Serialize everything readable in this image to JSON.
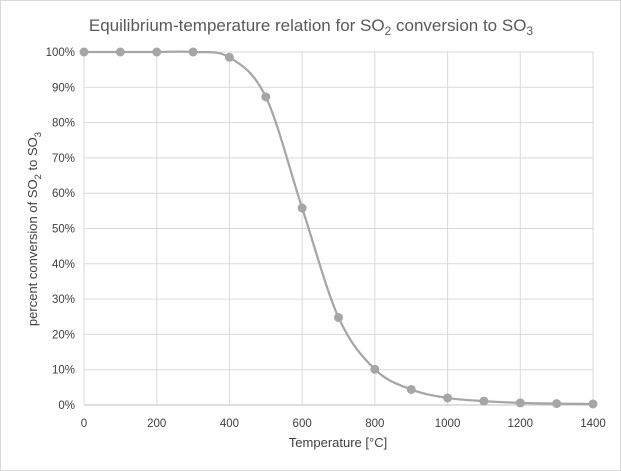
{
  "chart_data": {
    "type": "scatter",
    "title": {
      "main": "Equilibrium-temperature relation for SO",
      "sub1": "2",
      "mid": " conversion to SO",
      "sub2": "3"
    },
    "xlabel": "Temperature [°C]",
    "ylabel": {
      "main": "percent conversion of SO",
      "sub1": "2",
      "mid": " to SO",
      "sub2": "3"
    },
    "xlim": [
      0,
      1400
    ],
    "ylim": [
      0,
      100
    ],
    "x_ticks": [
      0,
      200,
      400,
      600,
      800,
      1000,
      1200,
      1400
    ],
    "y_ticks": [
      0,
      10,
      20,
      30,
      40,
      50,
      60,
      70,
      80,
      90,
      100
    ],
    "y_tick_suffix": "%",
    "grid": true,
    "smooth_line": true,
    "series": [
      {
        "x": [
          0,
          100,
          200,
          300,
          400,
          500,
          600,
          700,
          800,
          900,
          1000,
          1100,
          1200,
          1300,
          1400
        ],
        "y": [
          100,
          100,
          100,
          100,
          98.5,
          87.3,
          55.8,
          24.8,
          10.1,
          4.4,
          2.0,
          1.1,
          0.6,
          0.4,
          0.3
        ]
      }
    ],
    "colors": {
      "series": "#a6a6a6",
      "grid": "#d9d9d9",
      "text": "#404040",
      "title": "#595959"
    }
  }
}
